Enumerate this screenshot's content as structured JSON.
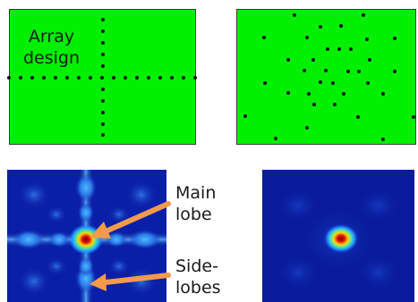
{
  "labels": {
    "array_design": [
      "Array",
      "design"
    ],
    "main_lobe": [
      "Main",
      "lobe"
    ],
    "side_lobes": [
      "Side-",
      "lobes"
    ]
  },
  "colors": {
    "array_background": "#00f000",
    "element_dot": "#111111",
    "arrow": "#f39a4b",
    "beam_background": "#0a1fa8"
  }
}
